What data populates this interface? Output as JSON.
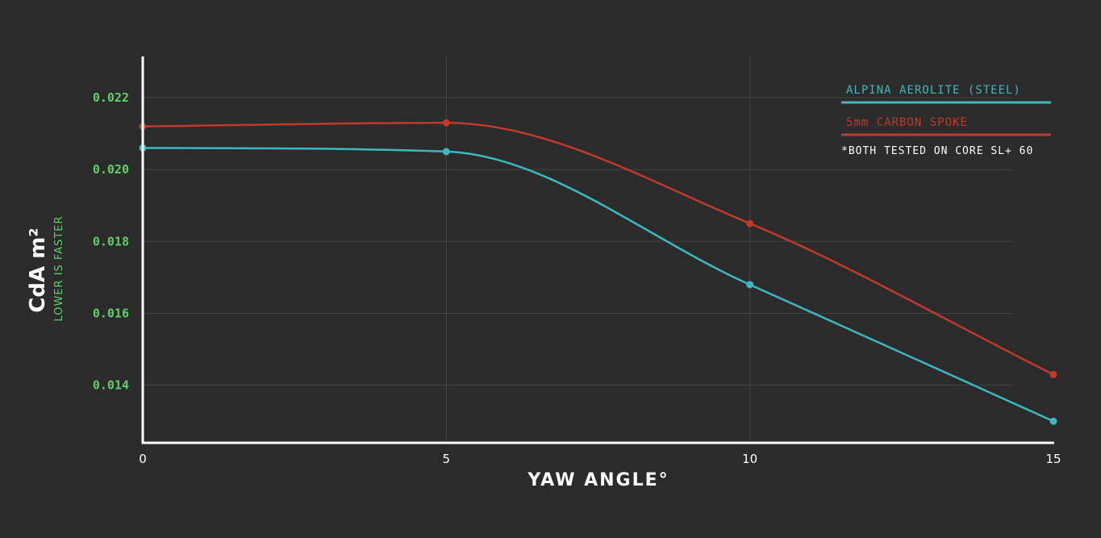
{
  "colors": {
    "background": "#2b2b2b",
    "grid": "#444444",
    "axis": "#ffffff",
    "tick_label": "#5fd068",
    "teal": "#3cb8c0",
    "red": "#c0392b"
  },
  "chart_data": {
    "type": "line",
    "xlabel": "YAW ANGLE°",
    "ylabel": "CdA m²",
    "ylabel_sub": "LOWER IS FASTER",
    "xlim": [
      0,
      15
    ],
    "ylim": [
      0.0124,
      0.0231
    ],
    "x_ticks": [
      {
        "value": 0,
        "label": "0"
      },
      {
        "value": 5,
        "label": "5"
      },
      {
        "value": 10,
        "label": "10"
      },
      {
        "value": 15,
        "label": "15"
      }
    ],
    "y_ticks": [
      {
        "value": 0.022,
        "label": "0.022"
      },
      {
        "value": 0.02,
        "label": "0.020"
      },
      {
        "value": 0.018,
        "label": "0.018"
      },
      {
        "value": 0.016,
        "label": "0.016"
      },
      {
        "value": 0.014,
        "label": "0.014"
      }
    ],
    "grid": true,
    "legend_position": "top-right",
    "note": "*BOTH TESTED ON CORE SL+ 60",
    "series": [
      {
        "name": "ALPINA AEROLITE (STEEL)",
        "color": "#3cb8c0",
        "x": [
          0,
          5,
          10,
          15
        ],
        "y": [
          0.0206,
          0.0205,
          0.0168,
          0.013
        ]
      },
      {
        "name": "5mm CARBON SPOKE",
        "color": "#c0392b",
        "x": [
          0,
          5,
          10,
          15
        ],
        "y": [
          0.0212,
          0.0213,
          0.0185,
          0.0143
        ]
      }
    ]
  }
}
